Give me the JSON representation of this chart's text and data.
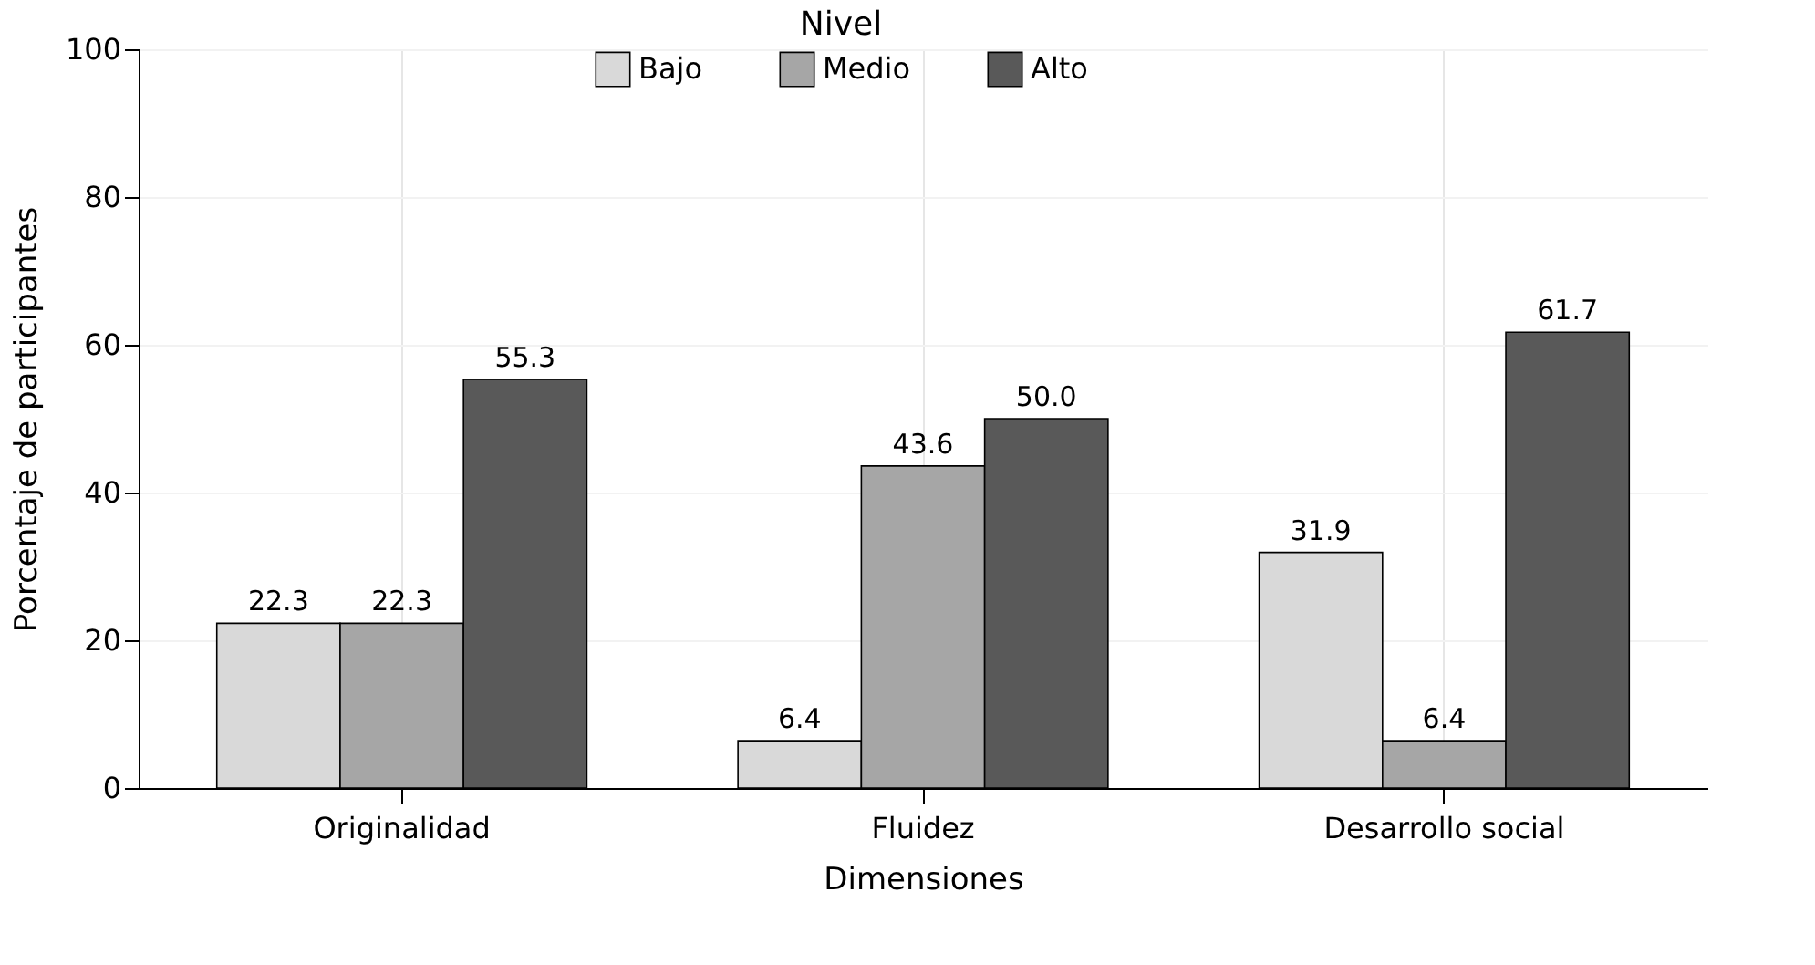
{
  "chart_data": {
    "type": "bar",
    "xlabel": "Dimensiones",
    "ylabel": "Porcentaje de participantes",
    "legend_title": "Nivel",
    "categories": [
      "Originalidad",
      "Fluidez",
      "Desarrollo social"
    ],
    "series": [
      {
        "name": "Bajo",
        "color": "#d9d9d9",
        "values": [
          22.3,
          6.4,
          31.9
        ]
      },
      {
        "name": "Medio",
        "color": "#a6a6a6",
        "values": [
          22.3,
          43.6,
          6.4
        ]
      },
      {
        "name": "Alto",
        "color": "#595959",
        "values": [
          55.3,
          50.0,
          61.7
        ]
      }
    ],
    "value_labels": [
      [
        "22.3",
        "6.4",
        "31.9"
      ],
      [
        "22.3",
        "43.6",
        "6.4"
      ],
      [
        "55.3",
        "50.0",
        "61.7"
      ]
    ],
    "ylim": [
      0,
      100
    ],
    "yticks": [
      0,
      20,
      40,
      60,
      80,
      100
    ],
    "grid": true,
    "legend": "top"
  }
}
